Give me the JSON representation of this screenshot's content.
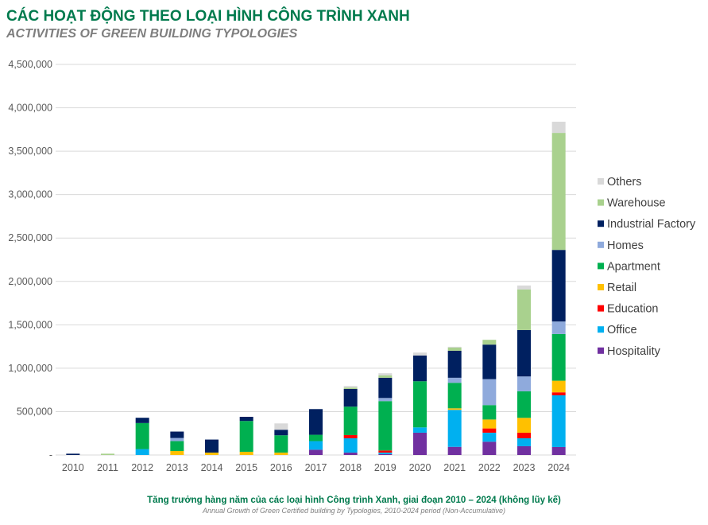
{
  "title": "CÁC HOẠT ĐỘNG THEO LOẠI HÌNH CÔNG TRÌNH XANH",
  "subtitle": "ACTIVITIES OF GREEN BUILDING TYPOLOGIES",
  "caption_vi": "Tăng trưởng hàng năm của các loại hình Công trình Xanh, giai đoạn 2010 – 2024 (không lũy kế)",
  "caption_en": "Annual Growth of Green Certified building by Typologies, 2010-2024 period (Non-Accumulative)",
  "chart_data": {
    "type": "bar",
    "stacked": true,
    "categories": [
      "2010",
      "2011",
      "2012",
      "2013",
      "2014",
      "2015",
      "2016",
      "2017",
      "2018",
      "2019",
      "2020",
      "2021",
      "2022",
      "2023",
      "2024"
    ],
    "ylim": [
      0,
      4500000
    ],
    "yticks": [
      0,
      500000,
      1000000,
      1500000,
      2000000,
      2500000,
      3000000,
      3500000,
      4000000,
      4500000
    ],
    "ytick_labels": [
      "-",
      "500,000",
      "1,000,000",
      "1,500,000",
      "2,000,000",
      "2,500,000",
      "3,000,000",
      "3,500,000",
      "4,000,000",
      "4,500,000"
    ],
    "grid": true,
    "legend_position": "right",
    "series": [
      {
        "name": "Hospitality",
        "color": "#7030a0",
        "values": [
          0,
          0,
          0,
          0,
          0,
          0,
          0,
          61000,
          28000,
          10000,
          257000,
          94000,
          153000,
          101000,
          92000
        ]
      },
      {
        "name": "Office",
        "color": "#00b0f0",
        "values": [
          0,
          0,
          68000,
          0,
          0,
          0,
          0,
          99000,
          165000,
          18000,
          61000,
          426000,
          104000,
          92000,
          596000
        ]
      },
      {
        "name": "Education",
        "color": "#ff0000",
        "values": [
          0,
          0,
          0,
          0,
          0,
          0,
          0,
          0,
          36000,
          24000,
          0,
          0,
          49000,
          64000,
          34000
        ]
      },
      {
        "name": "Retail",
        "color": "#ffc000",
        "values": [
          0,
          0,
          0,
          46000,
          28000,
          37000,
          28000,
          0,
          0,
          0,
          0,
          18000,
          103000,
          171000,
          134000
        ]
      },
      {
        "name": "Apartment",
        "color": "#00b050",
        "values": [
          0,
          0,
          300000,
          114000,
          0,
          355000,
          199000,
          73000,
          328000,
          569000,
          532000,
          294000,
          166000,
          306000,
          538000
        ]
      },
      {
        "name": "Homes",
        "color": "#8faadc",
        "values": [
          0,
          0,
          0,
          36000,
          0,
          0,
          0,
          0,
          0,
          36000,
          0,
          58000,
          299000,
          171000,
          144000
        ]
      },
      {
        "name": "Industrial Factory",
        "color": "#002060",
        "values": [
          15000,
          0,
          61000,
          74000,
          150000,
          48000,
          64000,
          296000,
          204000,
          233000,
          296000,
          311000,
          398000,
          535000,
          825000
        ]
      },
      {
        "name": "Warehouse",
        "color": "#a9d18e",
        "values": [
          0,
          15000,
          0,
          0,
          0,
          0,
          0,
          0,
          16000,
          27000,
          0,
          37000,
          55000,
          467000,
          1348000
        ]
      },
      {
        "name": "Others",
        "color": "#d9d9d9",
        "values": [
          0,
          0,
          0,
          0,
          0,
          0,
          73000,
          0,
          18000,
          25000,
          34000,
          9000,
          0,
          46000,
          129000
        ]
      }
    ]
  }
}
